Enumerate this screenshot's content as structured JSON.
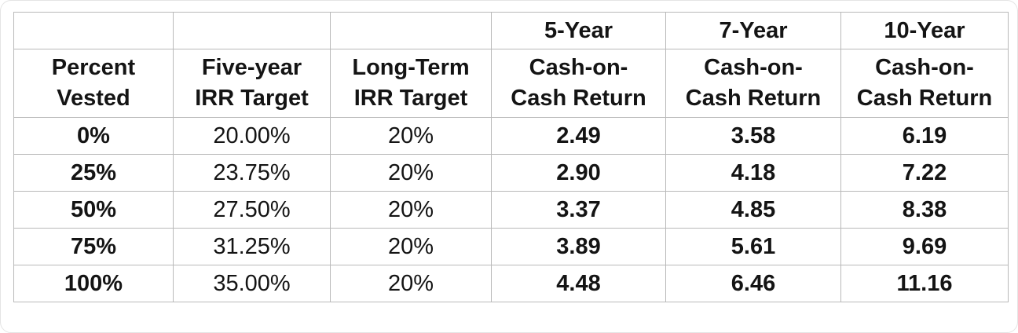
{
  "chart_data": {
    "type": "table",
    "columns": [
      "Percent Vested",
      "Five-year IRR Target",
      "Long-Term IRR Target",
      "5-Year Cash-on-Cash Return",
      "7-Year Cash-on-Cash Return",
      "10-Year Cash-on-Cash Return"
    ],
    "rows": [
      {
        "percent_vested": "0%",
        "five_year_irr_target": "20.00%",
        "long_term_irr_target": "20%",
        "cash_on_cash_5yr": 2.49,
        "cash_on_cash_7yr": 3.58,
        "cash_on_cash_10yr": 6.19
      },
      {
        "percent_vested": "25%",
        "five_year_irr_target": "23.75%",
        "long_term_irr_target": "20%",
        "cash_on_cash_5yr": 2.9,
        "cash_on_cash_7yr": 4.18,
        "cash_on_cash_10yr": 7.22
      },
      {
        "percent_vested": "50%",
        "five_year_irr_target": "27.50%",
        "long_term_irr_target": "20%",
        "cash_on_cash_5yr": 3.37,
        "cash_on_cash_7yr": 4.85,
        "cash_on_cash_10yr": 8.38
      },
      {
        "percent_vested": "75%",
        "five_year_irr_target": "31.25%",
        "long_term_irr_target": "20%",
        "cash_on_cash_5yr": 3.89,
        "cash_on_cash_7yr": 5.61,
        "cash_on_cash_10yr": 9.69
      },
      {
        "percent_vested": "100%",
        "five_year_irr_target": "35.00%",
        "long_term_irr_target": "20%",
        "cash_on_cash_5yr": 4.48,
        "cash_on_cash_7yr": 6.46,
        "cash_on_cash_10yr": 11.16
      }
    ]
  },
  "table": {
    "year_headers": [
      "5-Year",
      "7-Year",
      "10-Year"
    ],
    "column_headers": [
      [
        "Percent",
        "Vested"
      ],
      [
        "Five-year",
        "IRR Target"
      ],
      [
        "Long-Term",
        "IRR Target"
      ],
      [
        "Cash-on-",
        "Cash Return"
      ],
      [
        "Cash-on-",
        "Cash Return"
      ],
      [
        "Cash-on-",
        "Cash Return"
      ]
    ],
    "cells": [
      [
        "0%",
        "20.00%",
        "20%",
        "2.49",
        "3.58",
        "6.19"
      ],
      [
        "25%",
        "23.75%",
        "20%",
        "2.90",
        "4.18",
        "7.22"
      ],
      [
        "50%",
        "27.50%",
        "20%",
        "3.37",
        "4.85",
        "8.38"
      ],
      [
        "75%",
        "31.25%",
        "20%",
        "3.89",
        "5.61",
        "9.69"
      ],
      [
        "100%",
        "35.00%",
        "20%",
        "4.48",
        "6.46",
        "11.16"
      ]
    ]
  },
  "colors": {
    "background": "#ffffff",
    "text": "#141414",
    "grid_border": "#b9b9b9",
    "heavy_border": "#1f1f1f"
  }
}
